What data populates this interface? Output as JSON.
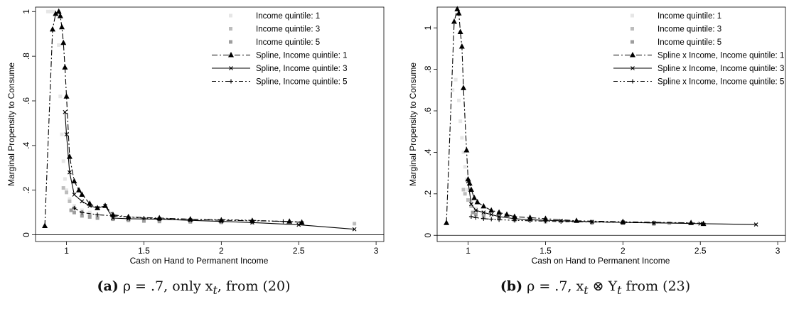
{
  "chart_data": [
    {
      "type": "scatter",
      "xlabel": "Cash on Hand to Permanent Income",
      "ylabel": "Marginal Propensity to Consume",
      "xlim": [
        0.8,
        3.05
      ],
      "ylim": [
        -0.03,
        1.02
      ],
      "xticks": [
        1,
        1.5,
        2,
        2.5,
        3
      ],
      "xtick_labels": [
        "1",
        "1.5",
        "2",
        "2.5",
        "3"
      ],
      "yticks": [
        0,
        0.2,
        0.4,
        0.6,
        0.8,
        1
      ],
      "ytick_labels": [
        "0",
        ".2",
        ".4",
        ".6",
        ".8",
        "1"
      ],
      "legend_position": "top-right",
      "caption": {
        "tag": "(a)",
        "text": "ρ = .7, only x",
        "sub": "t",
        "rest": ", from (20)"
      },
      "series": [
        {
          "name": "Income quintile: 1",
          "kind": "scatter",
          "color": "#e6e6e6",
          "x": [
            0.88,
            0.9,
            0.92,
            0.94,
            0.95,
            0.96,
            0.97,
            0.98,
            0.99,
            1.0,
            1.02,
            1.05,
            1.1,
            1.15,
            1.2,
            1.3,
            1.4,
            1.5
          ],
          "y": [
            1.0,
            1.0,
            1.0,
            0.99,
            0.85,
            0.62,
            0.45,
            0.33,
            0.25,
            0.2,
            0.16,
            0.13,
            0.11,
            0.1,
            0.09,
            0.08,
            0.075,
            0.07
          ]
        },
        {
          "name": "Income quintile: 3",
          "kind": "scatter",
          "color": "#bdbdbd",
          "x": [
            0.98,
            1.0,
            1.02,
            1.05,
            1.1,
            1.15,
            1.2,
            1.3,
            1.4,
            1.5,
            1.6,
            1.8,
            2.0,
            2.2,
            2.86
          ],
          "y": [
            0.21,
            0.19,
            0.15,
            0.12,
            0.1,
            0.09,
            0.08,
            0.075,
            0.07,
            0.068,
            0.066,
            0.064,
            0.062,
            0.06,
            0.05
          ]
        },
        {
          "name": "Income quintile: 5",
          "kind": "scatter",
          "color": "#9e9e9e",
          "x": [
            1.03,
            1.05,
            1.1,
            1.15,
            1.2,
            1.3,
            1.4,
            1.5,
            1.6,
            1.8,
            2.0,
            2.2
          ],
          "y": [
            0.11,
            0.1,
            0.085,
            0.08,
            0.075,
            0.07,
            0.065,
            0.062,
            0.06,
            0.058,
            0.056,
            0.055
          ]
        },
        {
          "name": "Spline, Income quintile: 1",
          "kind": "line",
          "dash": "8,3,2,3",
          "marker": "triangle",
          "color": "#000000",
          "x": [
            0.86,
            0.91,
            0.93,
            0.95,
            0.96,
            0.97,
            0.98,
            0.99,
            1.0,
            1.02,
            1.05,
            1.08,
            1.1,
            1.15,
            1.2,
            1.25,
            1.3,
            1.4,
            1.6,
            1.8,
            2.0,
            2.2,
            2.44,
            2.52
          ],
          "y": [
            0.04,
            0.92,
            0.99,
            1.0,
            0.98,
            0.93,
            0.86,
            0.75,
            0.62,
            0.35,
            0.24,
            0.2,
            0.18,
            0.14,
            0.12,
            0.13,
            0.09,
            0.08,
            0.075,
            0.07,
            0.065,
            0.063,
            0.06,
            0.055
          ]
        },
        {
          "name": "Spline, Income quintile: 3",
          "kind": "line",
          "dash": "",
          "marker": "cross",
          "color": "#000000",
          "x": [
            0.99,
            1.0,
            1.02,
            1.05,
            1.1,
            1.15,
            1.2,
            1.25,
            1.3,
            1.4,
            1.6,
            1.8,
            2.0,
            2.2,
            2.5,
            2.86
          ],
          "y": [
            0.55,
            0.45,
            0.28,
            0.18,
            0.15,
            0.13,
            0.12,
            0.13,
            0.075,
            0.072,
            0.07,
            0.065,
            0.06,
            0.055,
            0.045,
            0.025
          ]
        },
        {
          "name": "Spline, Income quintile: 5",
          "kind": "line",
          "dash": "6,3,2,3,2,3",
          "marker": "plus",
          "color": "#000000",
          "x": [
            1.05,
            1.1,
            1.2,
            1.3,
            1.4,
            1.5,
            1.6,
            1.8,
            2.0,
            2.2,
            2.4,
            2.52
          ],
          "y": [
            0.12,
            0.1,
            0.09,
            0.085,
            0.08,
            0.075,
            0.072,
            0.07,
            0.068,
            0.065,
            0.06,
            0.058
          ]
        }
      ]
    },
    {
      "type": "scatter",
      "xlabel": "Cash on Hand to Permanent Income",
      "ylabel": "Marginal Propensity to Consume",
      "xlim": [
        0.8,
        3.05
      ],
      "ylim": [
        -0.03,
        1.1
      ],
      "xticks": [
        1,
        1.5,
        2,
        2.5,
        3
      ],
      "xtick_labels": [
        "1",
        "1.5",
        "2",
        "2.5",
        "3"
      ],
      "yticks": [
        0,
        0.2,
        0.4,
        0.6,
        0.8,
        1
      ],
      "ytick_labels": [
        "0",
        ".2",
        ".4",
        ".6",
        ".8",
        "1"
      ],
      "legend_position": "top-right",
      "caption": {
        "tag": "(b)",
        "text": "ρ = .7, x",
        "sub": "t",
        "rest2": " ⊗ Y",
        "sub2": "t",
        "rest": " from (23)"
      },
      "series": [
        {
          "name": "Income quintile: 1",
          "kind": "scatter",
          "color": "#e6e6e6",
          "x": [
            0.9,
            0.92,
            0.94,
            0.95,
            0.96,
            0.97,
            0.98,
            0.99,
            1.0,
            1.02,
            1.05,
            1.1,
            1.2,
            1.3,
            1.5
          ],
          "y": [
            0.7,
            0.75,
            0.65,
            0.55,
            0.47,
            0.4,
            0.33,
            0.27,
            0.22,
            0.17,
            0.13,
            0.11,
            0.09,
            0.08,
            0.07
          ]
        },
        {
          "name": "Income quintile: 3",
          "kind": "scatter",
          "color": "#bdbdbd",
          "x": [
            0.97,
            0.98,
            1.0,
            1.02,
            1.05,
            1.1,
            1.2,
            1.3,
            1.5,
            1.8,
            2.0,
            2.3
          ],
          "y": [
            0.22,
            0.2,
            0.17,
            0.14,
            0.12,
            0.1,
            0.09,
            0.08,
            0.07,
            0.065,
            0.062,
            0.058
          ]
        },
        {
          "name": "Income quintile: 5",
          "kind": "scatter",
          "color": "#9e9e9e",
          "x": [
            1.03,
            1.05,
            1.1,
            1.2,
            1.3,
            1.5,
            1.8,
            2.0,
            2.2
          ],
          "y": [
            0.11,
            0.1,
            0.09,
            0.08,
            0.072,
            0.066,
            0.06,
            0.058,
            0.055
          ]
        },
        {
          "name": "Spline x Income, Income quintile: 1",
          "kind": "line",
          "dash": "8,3,2,3",
          "marker": "triangle",
          "color": "#000000",
          "x": [
            0.86,
            0.91,
            0.93,
            0.94,
            0.95,
            0.96,
            0.97,
            0.99,
            1.0,
            1.01,
            1.02,
            1.04,
            1.06,
            1.1,
            1.15,
            1.2,
            1.25,
            1.3,
            1.4,
            1.5,
            1.7,
            2.0,
            2.44,
            2.52
          ],
          "y": [
            0.06,
            1.03,
            1.09,
            1.07,
            0.98,
            0.91,
            0.71,
            0.41,
            0.27,
            0.25,
            0.22,
            0.18,
            0.16,
            0.14,
            0.12,
            0.11,
            0.1,
            0.09,
            0.085,
            0.08,
            0.07,
            0.065,
            0.06,
            0.055
          ]
        },
        {
          "name": "Spline x Income, Income quintile: 3",
          "kind": "line",
          "dash": "",
          "marker": "cross",
          "color": "#000000",
          "x": [
            1.0,
            1.02,
            1.05,
            1.1,
            1.15,
            1.2,
            1.3,
            1.4,
            1.6,
            1.8,
            2.0,
            2.2,
            2.5,
            2.86
          ],
          "y": [
            0.26,
            0.15,
            0.12,
            0.11,
            0.1,
            0.09,
            0.08,
            0.075,
            0.07,
            0.065,
            0.062,
            0.06,
            0.056,
            0.052
          ]
        },
        {
          "name": "Spline x Income, Income quintile: 5",
          "kind": "line",
          "dash": "6,3,2,3,2,3",
          "marker": "plus",
          "color": "#000000",
          "x": [
            1.02,
            1.05,
            1.1,
            1.15,
            1.2,
            1.3,
            1.4,
            1.5,
            1.6,
            1.8,
            2.0,
            2.2,
            2.52
          ],
          "y": [
            0.09,
            0.085,
            0.08,
            0.078,
            0.075,
            0.072,
            0.07,
            0.068,
            0.066,
            0.064,
            0.062,
            0.06,
            0.058
          ]
        }
      ]
    }
  ]
}
